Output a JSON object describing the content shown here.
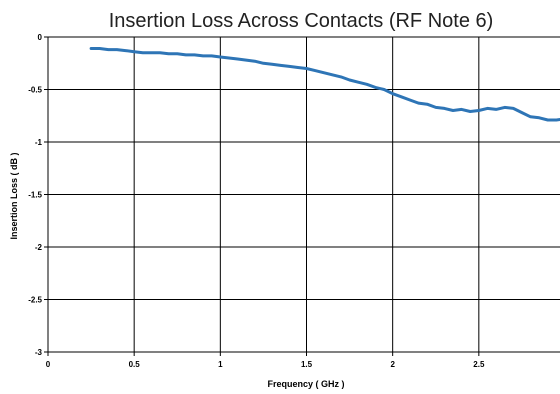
{
  "chart_data": {
    "type": "line",
    "title": "Insertion Loss Across Contacts (RF Note 6)",
    "xlabel": "Frequency ( GHz )",
    "ylabel": "Insertion Loss ( dB )",
    "xlim": [
      0,
      3
    ],
    "ylim": [
      -3,
      0
    ],
    "x_ticks": [
      0,
      0.5,
      1,
      1.5,
      2,
      2.5
    ],
    "x_tick_labels": [
      "0",
      "0.5",
      "1",
      "1.5",
      "2",
      "2.5"
    ],
    "y_ticks": [
      0,
      -0.5,
      -1,
      -1.5,
      -2,
      -2.5,
      -3
    ],
    "y_tick_labels": [
      "0",
      "-0.5",
      "-1",
      "-1.5",
      "-2",
      "-2.5",
      "-3"
    ],
    "grid": true,
    "legend": "none",
    "colors": {
      "series": "#2e75b6",
      "grid": "#000000"
    },
    "series": [
      {
        "x": [
          0.25,
          0.3,
          0.35,
          0.4,
          0.45,
          0.5,
          0.55,
          0.6,
          0.65,
          0.7,
          0.75,
          0.8,
          0.85,
          0.9,
          0.95,
          1.0,
          1.05,
          1.1,
          1.15,
          1.2,
          1.25,
          1.3,
          1.35,
          1.4,
          1.45,
          1.5,
          1.55,
          1.6,
          1.65,
          1.7,
          1.75,
          1.8,
          1.85,
          1.9,
          1.95,
          2.0,
          2.05,
          2.1,
          2.15,
          2.2,
          2.25,
          2.3,
          2.35,
          2.4,
          2.45,
          2.5,
          2.55,
          2.6,
          2.65,
          2.7,
          2.75,
          2.8,
          2.85,
          2.9,
          2.95,
          3.0
        ],
        "y": [
          -0.11,
          -0.11,
          -0.12,
          -0.12,
          -0.13,
          -0.14,
          -0.15,
          -0.15,
          -0.15,
          -0.16,
          -0.16,
          -0.17,
          -0.17,
          -0.18,
          -0.18,
          -0.19,
          -0.2,
          -0.21,
          -0.22,
          -0.23,
          -0.25,
          -0.26,
          -0.27,
          -0.28,
          -0.29,
          -0.3,
          -0.32,
          -0.34,
          -0.36,
          -0.38,
          -0.41,
          -0.43,
          -0.45,
          -0.48,
          -0.5,
          -0.54,
          -0.57,
          -0.6,
          -0.63,
          -0.64,
          -0.67,
          -0.68,
          -0.7,
          -0.69,
          -0.71,
          -0.7,
          -0.68,
          -0.69,
          -0.67,
          -0.68,
          -0.72,
          -0.76,
          -0.77,
          -0.79,
          -0.79,
          -0.78
        ]
      }
    ]
  }
}
